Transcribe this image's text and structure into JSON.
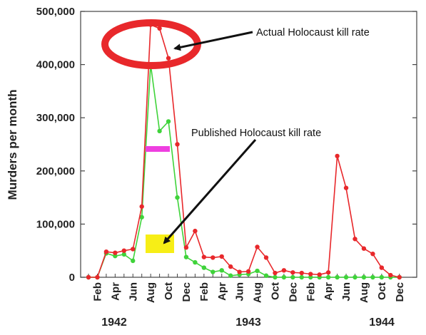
{
  "chart_data": {
    "type": "line",
    "title": "",
    "ylabel": "Murders per month",
    "xlabel": "",
    "ylim": [
      0,
      500000
    ],
    "yticks": [
      0,
      100000,
      200000,
      300000,
      400000,
      500000
    ],
    "ytick_labels": [
      "0",
      "100,000",
      "200,000",
      "300,000",
      "400,000",
      "500,000"
    ],
    "x_tick_labels": [
      "Feb",
      "Apr",
      "Jun",
      "Aug",
      "Oct",
      "Dec",
      "Feb",
      "Apr",
      "Jun",
      "Aug",
      "Oct",
      "Dec",
      "Feb",
      "Apr",
      "Jun",
      "Aug",
      "Oct",
      "Dec"
    ],
    "year_labels": [
      "1942",
      "1943",
      "1944"
    ],
    "months": [
      "Jan 1942",
      "Feb 1942",
      "Mar 1942",
      "Apr 1942",
      "May 1942",
      "Jun 1942",
      "Jul 1942",
      "Aug 1942",
      "Sep 1942",
      "Oct 1942",
      "Nov 1942",
      "Dec 1942",
      "Jan 1943",
      "Feb 1943",
      "Mar 1943",
      "Apr 1943",
      "May 1943",
      "Jun 1943",
      "Jul 1943",
      "Aug 1943",
      "Sep 1943",
      "Oct 1943",
      "Nov 1943",
      "Dec 1943",
      "Jan 1944",
      "Feb 1944",
      "Mar 1944",
      "Apr 1944",
      "May 1944",
      "Jun 1944",
      "Jul 1944",
      "Aug 1944",
      "Sep 1944",
      "Oct 1944",
      "Nov 1944",
      "Dec 1944"
    ],
    "grid": false,
    "series": [
      {
        "color": "#e8282b",
        "values": [
          0,
          0,
          48000,
          46000,
          50000,
          53000,
          133000,
          475000,
          468000,
          412000,
          250000,
          56000,
          87000,
          38000,
          37000,
          39000,
          20000,
          10000,
          11000,
          57000,
          37000,
          8000,
          13000,
          9000,
          8000,
          6000,
          5000,
          9000,
          228000,
          168000,
          72000,
          54000,
          44000,
          18000,
          4000,
          0
        ]
      },
      {
        "color": "#3fd33a",
        "values": [
          0,
          0,
          45000,
          40000,
          43000,
          31000,
          113000,
          400000,
          275000,
          293000,
          150000,
          38000,
          28000,
          18000,
          10000,
          13000,
          3000,
          5000,
          6000,
          12000,
          3000,
          0,
          0,
          0,
          0,
          0,
          0,
          0,
          0,
          0,
          0,
          0,
          0,
          0,
          0,
          0
        ]
      }
    ],
    "annotations": {
      "actual_label": "Actual Holocaust kill rate",
      "published_label": "Published Holocaust kill rate",
      "highlight_color": "#e8282b",
      "bar_color": "#ee3fe0",
      "box_color": "#f7ee16"
    }
  }
}
